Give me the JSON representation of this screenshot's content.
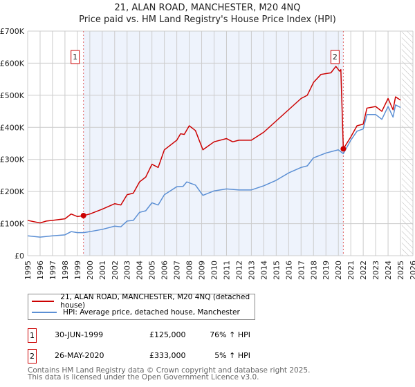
{
  "chart_data": {
    "type": "line",
    "title": "21, ALAN ROAD, MANCHESTER, M20 4NQ",
    "subtitle": "Price paid vs. HM Land Registry's House Price Index (HPI)",
    "xlim": [
      1995,
      2026
    ],
    "ylim": [
      0,
      700000
    ],
    "y_ticks": [
      "£0",
      "£100K",
      "£200K",
      "£300K",
      "£400K",
      "£500K",
      "£600K",
      "£700K"
    ],
    "x_ticks": [
      "1995",
      "1996",
      "1997",
      "1998",
      "1999",
      "2000",
      "2001",
      "2002",
      "2003",
      "2004",
      "2005",
      "2006",
      "2007",
      "2008",
      "2009",
      "2010",
      "2011",
      "2012",
      "2013",
      "2014",
      "2015",
      "2016",
      "2017",
      "2018",
      "2019",
      "2020",
      "2021",
      "2022",
      "2023",
      "2024",
      "2025",
      "2026"
    ],
    "grid": true,
    "series": [
      {
        "name": "21, ALAN ROAD, MANCHESTER, M20 4NQ (detached house)",
        "color": "#cc0000",
        "x": [
          1995,
          1996,
          1996.5,
          1997,
          1998,
          1998.5,
          1999,
          1999.5,
          2000,
          2001,
          2002,
          2002.5,
          2003,
          2003.5,
          2004,
          2004.5,
          2005,
          2005.5,
          2006,
          2007,
          2007.3,
          2007.6,
          2008,
          2008.5,
          2009.1,
          2010,
          2011,
          2011.5,
          2012,
          2013,
          2014,
          2015,
          2016,
          2017,
          2017.5,
          2018,
          2018.6,
          2019.4,
          2019.8,
          2020.1,
          2020.2,
          2020.4,
          2021,
          2021.5,
          2022,
          2022.3,
          2023,
          2023.5,
          2024,
          2024.4,
          2024.6,
          2025
        ],
        "y": [
          110000,
          102000,
          108000,
          110000,
          115000,
          130000,
          122000,
          125000,
          130000,
          145000,
          162000,
          158000,
          190000,
          195000,
          230000,
          245000,
          285000,
          275000,
          330000,
          360000,
          380000,
          378000,
          405000,
          390000,
          330000,
          355000,
          365000,
          355000,
          360000,
          360000,
          385000,
          420000,
          455000,
          490000,
          500000,
          540000,
          565000,
          570000,
          590000,
          575000,
          580000,
          333000,
          370000,
          405000,
          410000,
          460000,
          465000,
          450000,
          490000,
          455000,
          495000,
          485000
        ]
      },
      {
        "name": "HPI: Average price, detached house, Manchester",
        "color": "#5b8fd4",
        "x": [
          1995,
          1996,
          1997,
          1998,
          1998.5,
          1999,
          1999.5,
          2000,
          2001,
          2002,
          2002.5,
          2003,
          2003.5,
          2004,
          2004.5,
          2005,
          2005.5,
          2006,
          2007,
          2007.5,
          2007.8,
          2008.5,
          2009.1,
          2010,
          2011,
          2012,
          2013,
          2014,
          2015,
          2016,
          2017,
          2017.5,
          2018,
          2019,
          2020,
          2020.4,
          2021,
          2021.5,
          2022,
          2022.3,
          2023,
          2023.5,
          2024,
          2024.4,
          2024.6,
          2025
        ],
        "y": [
          62000,
          58000,
          62000,
          65000,
          75000,
          72000,
          72000,
          75000,
          82000,
          92000,
          90000,
          108000,
          110000,
          135000,
          140000,
          165000,
          158000,
          190000,
          215000,
          216000,
          230000,
          220000,
          188000,
          202000,
          208000,
          205000,
          205000,
          218000,
          235000,
          258000,
          275000,
          280000,
          305000,
          320000,
          330000,
          318000,
          360000,
          388000,
          395000,
          440000,
          440000,
          425000,
          465000,
          432000,
          470000,
          462000
        ]
      }
    ],
    "sales": [
      {
        "label": "1",
        "x": 1999.49,
        "y": 125000,
        "date": "30-JUN-1999",
        "price": "£125,000",
        "hpi_change": "76% ↑ HPI"
      },
      {
        "label": "2",
        "x": 2020.4,
        "y": 333000,
        "date": "26-MAY-2020",
        "price": "£333,000",
        "hpi_change": "5% ↑ HPI"
      }
    ],
    "shaded_range": [
      1999.49,
      2020.4
    ],
    "forecast_hatched_from": 2025.1,
    "legend_position": "bottom"
  },
  "footer": {
    "line1": "Contains HM Land Registry data © Crown copyright and database right 2025.",
    "line2": "This data is licensed under the Open Government Licence v3.0."
  }
}
